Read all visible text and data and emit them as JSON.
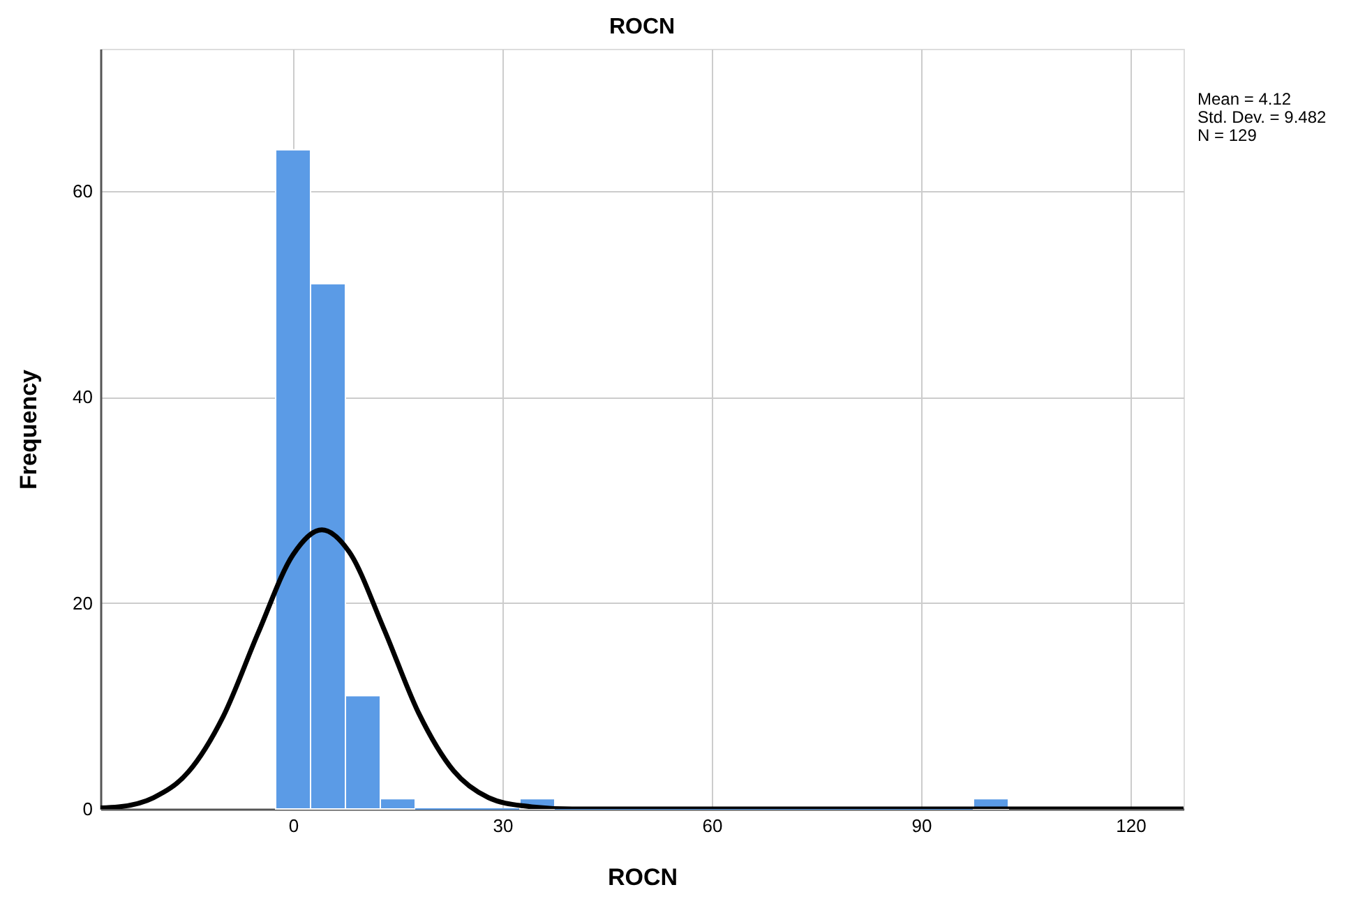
{
  "chart_data": {
    "type": "histogram",
    "title": "ROCN",
    "xlabel": "ROCN",
    "ylabel": "Frequency",
    "bins": [
      -2.5,
      2.5,
      7.5,
      12.5,
      17.5,
      22.5,
      27.5,
      32.5,
      37.5,
      42.5,
      47.5,
      52.5,
      57.5,
      62.5,
      67.5,
      72.5,
      77.5,
      82.5,
      87.5,
      92.5,
      97.5,
      102.5
    ],
    "series": [
      {
        "type": "histogram",
        "color": "#5b9be6",
        "values": [
          64,
          51,
          11,
          1,
          0,
          0,
          0,
          1,
          0,
          0,
          0,
          0,
          0,
          0,
          0,
          0,
          0,
          0,
          0,
          0,
          1
        ]
      },
      {
        "type": "line",
        "color": "#000000",
        "x": [
          -27.6,
          -25,
          -20,
          -15,
          -10,
          -5,
          0,
          4.12,
          8,
          13,
          18,
          23,
          28,
          33,
          40,
          60,
          127.6
        ],
        "values": [
          0.1,
          0.2,
          1.1,
          3.6,
          9.0,
          17.1,
          24.7,
          27.1,
          25.0,
          17.5,
          9.3,
          3.7,
          1.1,
          0.3,
          0,
          0,
          0
        ]
      }
    ],
    "xlim": [
      -27.6,
      127.6
    ],
    "ylim": [
      0,
      73.8
    ],
    "xticks": [
      0,
      30,
      60,
      90,
      120
    ],
    "yticks": [
      0,
      20,
      40,
      60
    ],
    "grid": true,
    "line_style": "solid",
    "marker": "none",
    "annotations": [
      "Mean = 4.12",
      "Std. Dev. = 9.482",
      "N = 129"
    ]
  }
}
